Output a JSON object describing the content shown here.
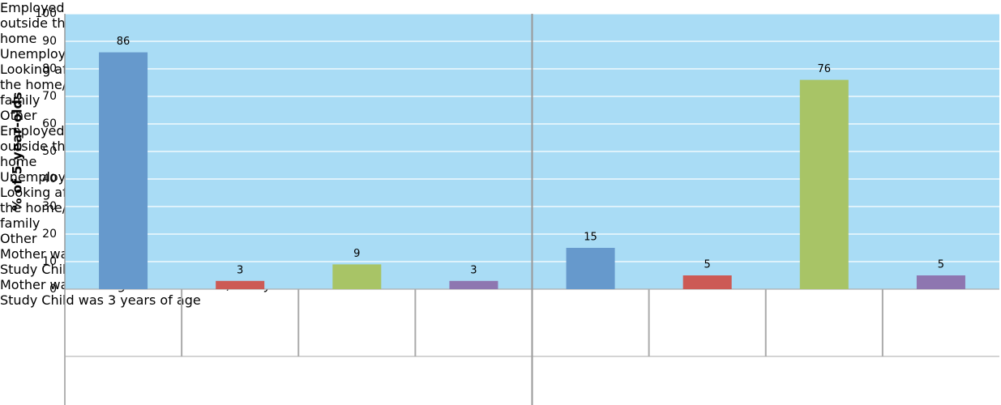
{
  "chart_data": {
    "type": "bar",
    "y_label": "% of 5-year-olds",
    "categories": [
      "Employed outside the home",
      "Unemployed",
      "Looking after the home/ family",
      "Other",
      "Employed outside the home",
      "Unemployed",
      "Looking after the home/ family",
      "Other"
    ],
    "values": [
      86,
      3,
      9,
      3,
      15,
      5,
      76,
      5
    ],
    "colors": [
      "#6699cc",
      "#cc5a55",
      "#a8c466",
      "#8e76b0",
      "#6699cc",
      "#cc5a55",
      "#a8c466",
      "#8e76b0"
    ],
    "groups": [
      [
        "Mother was ",
        "employed outside the home",
        " when Study Child was 3 years of age"
      ],
      [
        "Mother was ",
        "looking after the home/family",
        " when Study Child was 3 years of age"
      ]
    ],
    "ylim": [
      0,
      100
    ],
    "yticks": [
      0,
      10,
      20,
      30,
      40,
      50,
      60,
      70,
      80,
      90,
      100
    ],
    "grid": true
  }
}
